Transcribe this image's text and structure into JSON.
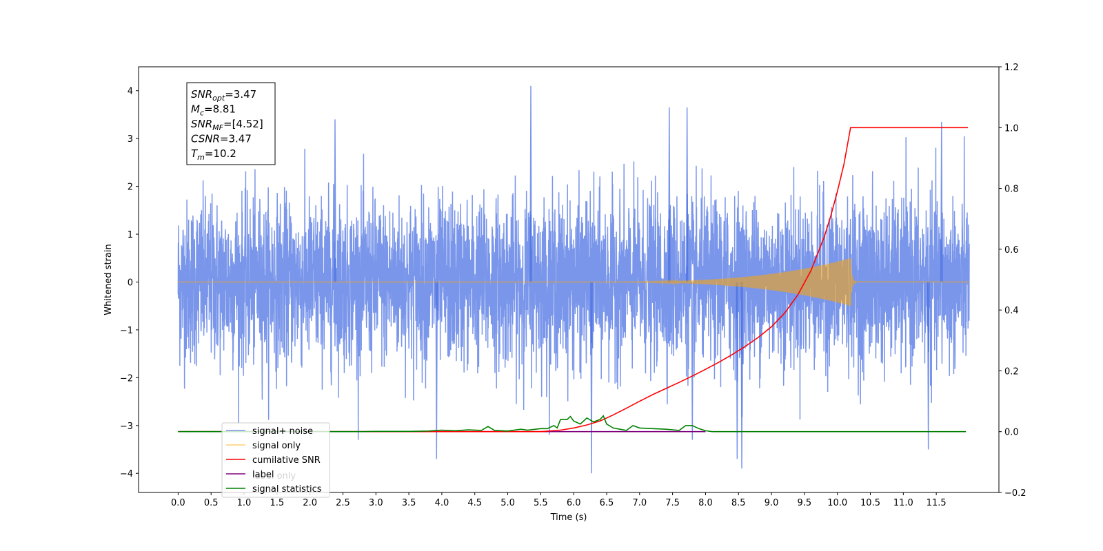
{
  "chart_data": {
    "type": "line",
    "title": "",
    "xlabel": "Time (s)",
    "ylabel": "Whitened strain",
    "y2label": "",
    "xlim": [
      -0.6,
      12.45
    ],
    "ylim": [
      -4.4,
      4.5
    ],
    "y2lim": [
      -0.2,
      1.2
    ],
    "x_ticks": [
      0.0,
      0.5,
      1.0,
      1.5,
      2.0,
      2.5,
      3.0,
      3.5,
      4.0,
      4.5,
      5.0,
      5.5,
      6.0,
      6.5,
      7.0,
      7.5,
      8.0,
      8.5,
      9.0,
      9.5,
      10.0,
      10.5,
      11.0,
      11.5
    ],
    "x_tick_labels": [
      "0.0",
      "0.5",
      "1.0",
      "1.5",
      "2.0",
      "2.5",
      "3.0",
      "3.5",
      "4.0",
      "4.5",
      "5.0",
      "5.5",
      "6.0",
      "6.5",
      "7.0",
      "7.5",
      "8.0",
      "8.5",
      "9.0",
      "9.5",
      "10.0",
      "10.5",
      "11.0",
      "11.5"
    ],
    "y_ticks": [
      -4,
      -3,
      -2,
      -1,
      0,
      1,
      2,
      3,
      4
    ],
    "y_tick_labels": [
      "−4",
      "−3",
      "−2",
      "−1",
      "0",
      "1",
      "2",
      "3",
      "4"
    ],
    "y2_ticks": [
      -0.2,
      0.0,
      0.2,
      0.4,
      0.6,
      0.8,
      1.0,
      1.2
    ],
    "y2_tick_labels": [
      "−0.2",
      "0.0",
      "0.2",
      "0.4",
      "0.6",
      "0.8",
      "1.0",
      "1.2"
    ],
    "grid": false,
    "legend_placement": "lower-left",
    "annotation": {
      "lines": [
        {
          "main": "SNR",
          "sub": "opt",
          "rest": "=3.47"
        },
        {
          "main": "M",
          "sub": "c",
          "rest": "=8.81"
        },
        {
          "main": "SNR",
          "sub": "MF",
          "rest": "=[4.52]"
        },
        {
          "main": "CSNR",
          "sub": "",
          "rest": "=3.47"
        },
        {
          "main": "T",
          "sub": "m",
          "rest": "=10.2"
        }
      ]
    },
    "series": [
      {
        "name": "signal+ noise",
        "axis": "left",
        "color": "#4169e1",
        "opacity": 0.7,
        "noise_amplitude_std": 0.85,
        "x_range": [
          0.0,
          12.0
        ],
        "notable_spikes": [
          {
            "x": 5.35,
            "y": 4.1
          },
          {
            "x": 2.38,
            "y": 3.4
          },
          {
            "x": 7.45,
            "y": 3.65
          },
          {
            "x": 7.72,
            "y": 3.65
          },
          {
            "x": 11.58,
            "y": 3.35
          },
          {
            "x": 6.27,
            "y": -4.0
          },
          {
            "x": 8.55,
            "y": -3.9
          },
          {
            "x": 3.92,
            "y": -3.7
          },
          {
            "x": 8.48,
            "y": -3.7
          },
          {
            "x": 11.38,
            "y": -3.5
          },
          {
            "x": 7.8,
            "y": -3.3
          }
        ]
      },
      {
        "name": "signal only",
        "axis": "left",
        "color": "#ffa500",
        "chirp_start_x": 6.0,
        "merger_x": 10.2,
        "peak_amplitude": 0.5,
        "ringdown_end_x": 10.3
      },
      {
        "name": "cumilative SNR",
        "axis": "right",
        "color": "#ff0000",
        "x": [
          0.0,
          5.5,
          5.8,
          6.0,
          6.2,
          6.4,
          6.6,
          6.8,
          7.0,
          7.2,
          7.4,
          7.6,
          7.8,
          8.0,
          8.2,
          8.4,
          8.6,
          8.8,
          9.0,
          9.2,
          9.4,
          9.6,
          9.8,
          9.9,
          10.0,
          10.1,
          10.15,
          10.2,
          11.98
        ],
        "y": [
          0.0,
          0.0,
          0.005,
          0.012,
          0.022,
          0.035,
          0.055,
          0.077,
          0.1,
          0.122,
          0.142,
          0.162,
          0.183,
          0.205,
          0.228,
          0.253,
          0.28,
          0.31,
          0.345,
          0.39,
          0.45,
          0.53,
          0.64,
          0.71,
          0.79,
          0.88,
          0.94,
          1.0,
          1.0
        ]
      },
      {
        "name": "label",
        "axis": "right",
        "color": "#800080",
        "x": [
          0.0,
          8.0
        ],
        "y": [
          0.0,
          0.0
        ]
      },
      {
        "name": "label only",
        "axis": "right",
        "color": "#800080",
        "legend_only": true
      },
      {
        "name": "signal statistics",
        "axis": "right",
        "color": "#008000",
        "x": [
          0.0,
          2.8,
          3.0,
          3.5,
          3.8,
          4.0,
          4.2,
          4.4,
          4.6,
          4.7,
          4.8,
          5.0,
          5.2,
          5.3,
          5.5,
          5.6,
          5.7,
          5.75,
          5.8,
          5.9,
          5.95,
          6.0,
          6.1,
          6.2,
          6.3,
          6.4,
          6.45,
          6.5,
          6.6,
          6.7,
          6.8,
          6.9,
          7.0,
          7.2,
          7.4,
          7.5,
          7.6,
          7.7,
          7.8,
          7.9,
          8.0,
          8.1,
          8.3,
          11.95
        ],
        "y": [
          0.0,
          0.0,
          0.001,
          0.001,
          0.002,
          0.005,
          0.003,
          0.006,
          0.004,
          0.017,
          0.004,
          0.002,
          0.008,
          0.005,
          0.01,
          0.01,
          0.02,
          0.012,
          0.04,
          0.04,
          0.05,
          0.035,
          0.025,
          0.045,
          0.032,
          0.04,
          0.052,
          0.025,
          0.012,
          0.008,
          0.004,
          0.02,
          0.012,
          0.01,
          0.008,
          0.006,
          0.004,
          0.02,
          0.02,
          0.01,
          0.003,
          0.0,
          0.0,
          0.0
        ]
      }
    ]
  }
}
